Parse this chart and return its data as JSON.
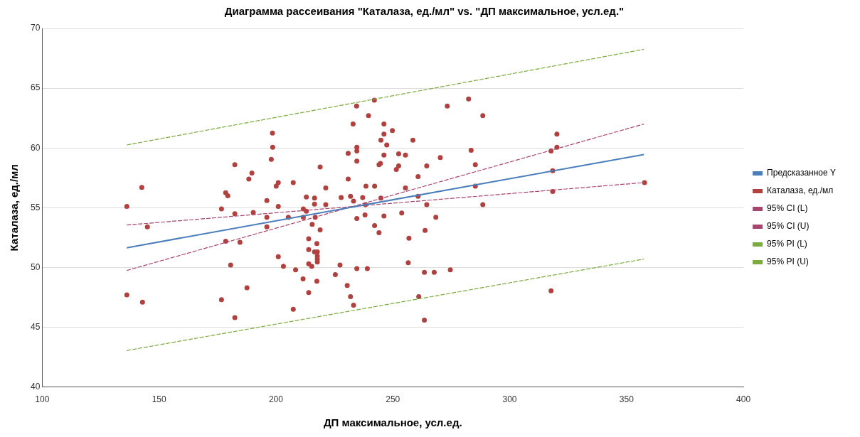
{
  "chart_data": {
    "type": "scatter",
    "title": "Диаграмма рассеивания \"Каталаза, ед./мл\" vs. \"ДП максимальное, усл.ед.\"",
    "xlabel": "ДП максимальное, усл.ед.",
    "ylabel": "Каталаза, ед./мл",
    "xlim": [
      100,
      400
    ],
    "xticks": [
      100,
      150,
      200,
      250,
      300,
      350,
      400
    ],
    "ylim": [
      40,
      70
    ],
    "yticks": [
      40,
      45,
      50,
      55,
      60,
      65,
      70
    ],
    "grid": "y",
    "legend": "right",
    "marker": "circle",
    "series": [
      {
        "name": "Предсказанное Y",
        "type": "line",
        "line_style": "solid",
        "marker": "none",
        "color": "#4a7ebb",
        "x": [
          136.2,
          357.4
        ],
        "values": [
          51.65,
          59.45
        ]
      },
      {
        "name": "Каталаза, ед./мл",
        "type": "scatter",
        "color": "#b0413e",
        "x": [
          136.2,
          136.2,
          142.6,
          142.9,
          145,
          198.5,
          198.6,
          198,
          182.4,
          189.7,
          188.4,
          179.4,
          178.5,
          176.7,
          182.4,
          190.3,
          196.1,
          196.1,
          196.1,
          200.1,
          201,
          201,
          207.4,
          205.3,
          178.5,
          184.6,
          180.6,
          201,
          203.2,
          208.4,
          187.6,
          176.7,
          182.4,
          207.4,
          211.6,
          213,
          216.5,
          216.5,
          211.7,
          213,
          211.7,
          215.5,
          214,
          217.5,
          214,
          216.5,
          217.7,
          217.7,
          217.7,
          217.7,
          214,
          215.3,
          217.5,
          214,
          242.1,
          234.5,
          239.6,
          233,
          246.2,
          249.8,
          246.2,
          244.9,
          258.6,
          247.4,
          234.6,
          234.6,
          230.9,
          246.2,
          252.5,
          255.4,
          234.6,
          244.1,
          244.7,
          252.5,
          251.5,
          218.9,
          260.8,
          230.9,
          221.3,
          238.5,
          242.2,
          255.4,
          227.9,
          231.9,
          237.1,
          244.9,
          233.2,
          260.8,
          221.3,
          238.3,
          216.8,
          234.6,
          238.1,
          246.2,
          253.8,
          218.9,
          242.2,
          244.1,
          256.9,
          227.4,
          234.6,
          239.1,
          256.6,
          225.4,
          230.5,
          231.9,
          233.2,
          263.5,
          263.5,
          263.8,
          264.5,
          270.3,
          273.3,
          282.4,
          288.5,
          283.5,
          285.3,
          285.3,
          264.5,
          288.5,
          268.4,
          267.7,
          274.6,
          261.1,
          320.2,
          320.2,
          317.7,
          318.4,
          318.4,
          317.7,
          357.7
        ],
        "values": [
          55.1,
          47.7,
          56.7,
          47.1,
          53.4,
          61.25,
          60.05,
          59.05,
          58.6,
          57.9,
          57.4,
          56,
          56.25,
          54.9,
          54.5,
          54.6,
          55.6,
          54.2,
          53.4,
          56.8,
          57.1,
          55.1,
          57.1,
          54.2,
          52.2,
          52.1,
          50.2,
          50.9,
          50.1,
          49.8,
          48.3,
          47.3,
          45.8,
          46.5,
          49.05,
          55.9,
          55.8,
          55.3,
          54.9,
          54.7,
          54.2,
          53.6,
          52.4,
          52,
          51.5,
          51.3,
          51.3,
          50.95,
          50.7,
          50.45,
          50.3,
          50.1,
          48.85,
          47.9,
          64,
          63.5,
          62.7,
          62,
          62,
          61.45,
          61.15,
          60.65,
          60.65,
          60.25,
          60.05,
          59.75,
          59.55,
          59.4,
          59.5,
          59.4,
          58.9,
          58.6,
          58.7,
          58.5,
          58.2,
          58.4,
          57.6,
          57.4,
          56.65,
          56.8,
          56.8,
          56.65,
          55.85,
          55.95,
          55.85,
          55.8,
          55.55,
          55.95,
          55.25,
          55.25,
          54.2,
          54.1,
          54.4,
          54.3,
          54.55,
          53.15,
          53.5,
          52.9,
          52.45,
          50.2,
          49.9,
          49.9,
          50.4,
          49.4,
          48.5,
          47.55,
          46.85,
          45.6,
          49.6,
          53.1,
          58.5,
          59.2,
          63.5,
          64.1,
          62.7,
          59.8,
          58.6,
          56.8,
          55.25,
          55.25,
          54.2,
          49.6,
          49.8,
          47.55,
          61.15,
          60.05,
          59.75,
          58.1,
          56.35,
          48.05,
          57.1
        ]
      },
      {
        "name": "95% CI (L)",
        "type": "line",
        "line_style": "dashed",
        "marker": "none",
        "color": "#a8456f",
        "x": [
          136.2,
          357.4
        ],
        "values": [
          53.55,
          57.1
        ]
      },
      {
        "name": "95% CI (U)",
        "type": "line",
        "line_style": "dashed",
        "marker": "none",
        "color": "#a8456f",
        "x": [
          136.2,
          357.4
        ],
        "values": [
          49.75,
          62
        ]
      },
      {
        "name": "95% PI (L)",
        "type": "line",
        "line_style": "dashed",
        "marker": "none",
        "color": "#7aab3d",
        "x": [
          136.2,
          357.4
        ],
        "values": [
          43.05,
          50.7
        ]
      },
      {
        "name": "95% PI (U)",
        "type": "line",
        "line_style": "dashed",
        "marker": "none",
        "color": "#7aab3d",
        "x": [
          136.2,
          357.4
        ],
        "values": [
          60.25,
          68.25
        ]
      }
    ]
  }
}
